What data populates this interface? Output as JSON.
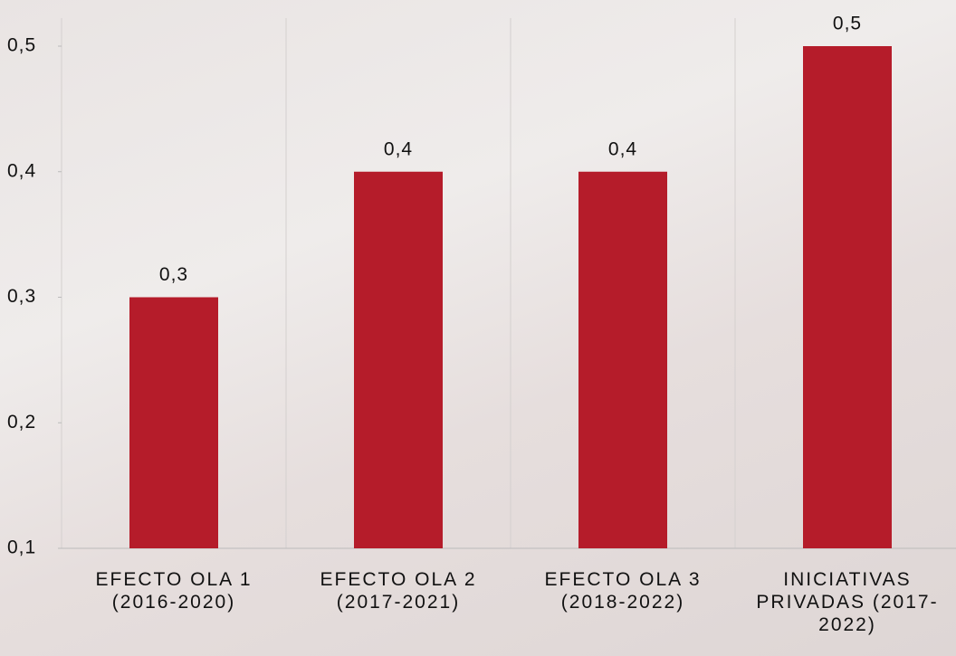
{
  "chart_data": {
    "type": "bar",
    "categories": [
      "EFECTO OLA 1 (2016-2020)",
      "EFECTO OLA 2 (2017-2021)",
      "EFECTO OLA 3 (2018-2022)",
      "INICIATIVAS PRIVADAS (2017-2022)"
    ],
    "values": [
      0.3,
      0.4,
      0.4,
      0.5
    ],
    "value_labels": [
      "0,3",
      "0,4",
      "0,4",
      "0,5"
    ],
    "color": "#b51c2a",
    "ylim": [
      0.1,
      0.5
    ],
    "yticks": [
      {
        "value": 0.1,
        "label": "0,1"
      },
      {
        "value": 0.2,
        "label": "0,2"
      },
      {
        "value": 0.3,
        "label": "0,3"
      },
      {
        "value": 0.4,
        "label": "0,4"
      },
      {
        "value": 0.5,
        "label": "0,5"
      }
    ],
    "grid": false
  }
}
